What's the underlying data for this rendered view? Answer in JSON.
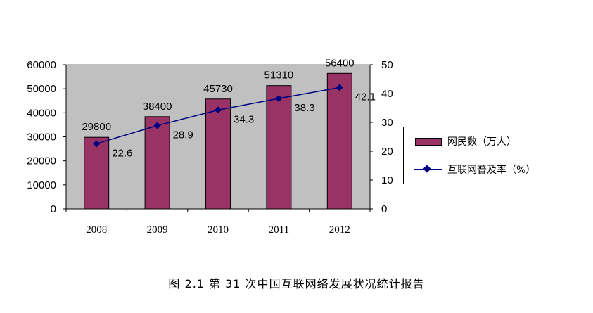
{
  "chart_data": {
    "type": "bar",
    "categories": [
      "2008",
      "2009",
      "2010",
      "2011",
      "2012"
    ],
    "series": [
      {
        "name": "网民数（万人）",
        "type": "bar",
        "axis": "left",
        "values": [
          29800,
          38400,
          45730,
          51310,
          56400
        ],
        "labels": [
          "29800",
          "38400",
          "45730",
          "51310",
          "56400"
        ],
        "color": "#993366"
      },
      {
        "name": "互联网普及率（%）",
        "type": "line",
        "axis": "right",
        "values": [
          22.6,
          28.9,
          34.3,
          38.3,
          42.1
        ],
        "labels": [
          "22.6",
          "28.9",
          "34.3",
          "38.3",
          "42.1"
        ],
        "color": "#000080"
      }
    ],
    "y_left": {
      "min": 0,
      "max": 60000,
      "ticks": [
        "0",
        "10000",
        "20000",
        "30000",
        "40000",
        "50000",
        "60000"
      ]
    },
    "y_right": {
      "min": 0,
      "max": 50,
      "ticks": [
        "0",
        "10",
        "20",
        "30",
        "40",
        "50"
      ]
    },
    "plot_background": "#c0c0c0",
    "legend_position": "right",
    "grid": false
  },
  "caption": "图 2.1 第 31 次中国互联网络发展状况统计报告"
}
